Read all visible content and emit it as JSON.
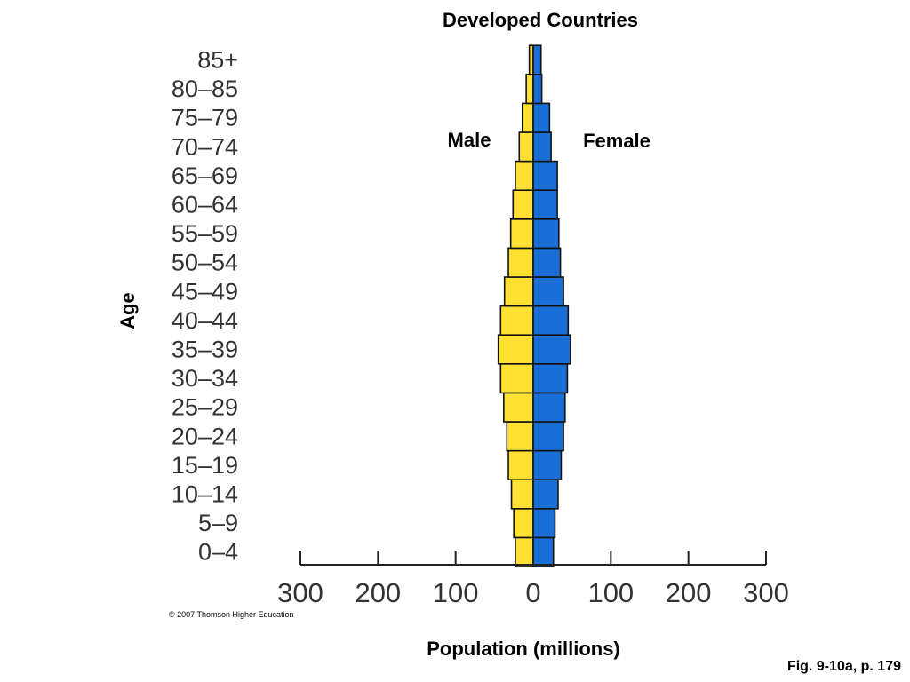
{
  "chart_data": {
    "type": "bar",
    "orientation": "horizontal",
    "layout": "population-pyramid",
    "title": "Developed Countries",
    "xlabel": "Population (millions)",
    "ylabel": "Age",
    "categories": [
      "0–4",
      "5–9",
      "10–14",
      "15–19",
      "20–24",
      "25–29",
      "30–34",
      "35–39",
      "40–44",
      "45–49",
      "50–54",
      "55–59",
      "60–64",
      "65–69",
      "70–74",
      "75–79",
      "80–85",
      "85+"
    ],
    "x_ticks": [
      -300,
      -200,
      -100,
      0,
      100,
      200,
      300
    ],
    "x_tick_labels": [
      "300",
      "200",
      "100",
      "0",
      "100",
      "200",
      "300"
    ],
    "xlim": [
      -300,
      300
    ],
    "series": [
      {
        "name": "Male",
        "color": "#FFE033",
        "values": [
          23,
          25,
          28,
          32,
          34,
          38,
          42,
          45,
          42,
          37,
          32,
          29,
          26,
          23,
          18,
          14,
          9,
          5
        ]
      },
      {
        "name": "Female",
        "color": "#1A6FD6",
        "values": [
          26,
          28,
          32,
          36,
          39,
          41,
          44,
          48,
          45,
          39,
          35,
          33,
          31,
          31,
          23,
          21,
          11,
          10
        ]
      }
    ],
    "grid": false,
    "legend": "inline labels"
  },
  "copyright": "© 2007 Thomson Higher Education",
  "caption": "Fig. 9-10a, p. 179"
}
